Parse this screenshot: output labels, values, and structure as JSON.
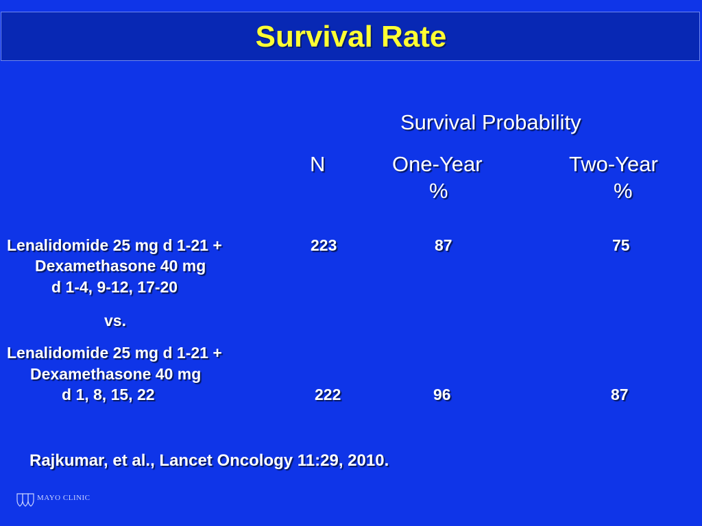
{
  "slide": {
    "title": "Survival Rate",
    "group_header": "Survival Probability",
    "columns": {
      "n": "N",
      "one_year": "One-Year",
      "one_year_unit": "%",
      "two_year": "Two-Year",
      "two_year_unit": "%"
    },
    "arm1": {
      "line1": "Lenalidomide 25 mg d 1-21 +",
      "line2": "Dexamethasone 40 mg",
      "line3": "d 1-4, 9-12, 17-20",
      "n": "223",
      "one_year": "87",
      "two_year": "75"
    },
    "separator": "vs.",
    "arm2": {
      "line1": "Lenalidomide 25 mg d 1-21 +",
      "line2": "Dexamethasone 40 mg",
      "line3": "d 1, 8, 15, 22",
      "n": "222",
      "one_year": "96",
      "two_year": "87"
    },
    "reference": "Rajkumar, et al., Lancet Oncology 11:29, 2010.",
    "logo": {
      "icon": "mayo-shield-icon",
      "text": "MAYO CLINIC"
    }
  }
}
